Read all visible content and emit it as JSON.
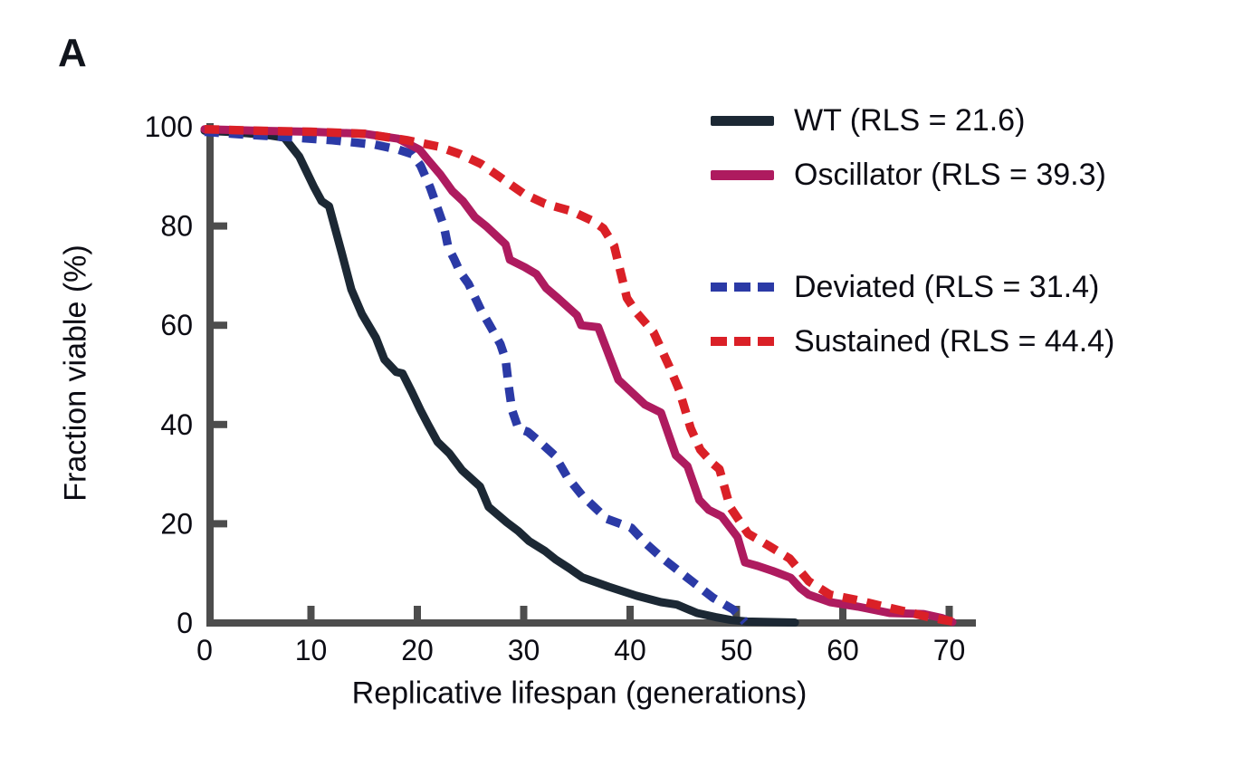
{
  "figure": {
    "panel_label": "A"
  },
  "chart_data": {
    "type": "line",
    "title": "",
    "xlabel": "Replicative lifespan (generations)",
    "ylabel": "Fraction viable (%)",
    "xlim": [
      0,
      70
    ],
    "ylim": [
      0,
      100
    ],
    "x_ticks": [
      0,
      10,
      20,
      30,
      40,
      50,
      60,
      70
    ],
    "y_ticks": [
      0,
      20,
      40,
      60,
      80,
      100
    ],
    "grid": false,
    "legend_position": "upper right",
    "axis_color": "#4d4d4d",
    "text_color": "#0c0c14",
    "series": [
      {
        "name": "WT",
        "label": "WT (RLS = 21.6)",
        "rls": 21.6,
        "color": "#1c2834",
        "style": "solid",
        "points": [
          [
            0,
            99.2
          ],
          [
            2,
            99
          ],
          [
            4,
            98.7
          ],
          [
            6,
            98.3
          ],
          [
            7.5,
            97.8
          ],
          [
            8.9,
            94
          ],
          [
            10.3,
            87.8
          ],
          [
            11,
            85
          ],
          [
            11.7,
            84
          ],
          [
            12.9,
            74.5
          ],
          [
            13.8,
            67.2
          ],
          [
            14.8,
            62.2
          ],
          [
            16.1,
            57.5
          ],
          [
            16.9,
            53.1
          ],
          [
            18,
            50.6
          ],
          [
            18.6,
            50.3
          ],
          [
            19.5,
            46.5
          ],
          [
            20.3,
            42.9
          ],
          [
            21,
            40
          ],
          [
            21.9,
            36.5
          ],
          [
            23,
            34.2
          ],
          [
            24.2,
            30.8
          ],
          [
            25.9,
            27.5
          ],
          [
            26.7,
            23.4
          ],
          [
            28.4,
            20.3
          ],
          [
            29.5,
            18.5
          ],
          [
            30.5,
            16.5
          ],
          [
            32,
            14.5
          ],
          [
            33,
            12.8
          ],
          [
            34.3,
            11
          ],
          [
            35.5,
            9.2
          ],
          [
            38,
            7.3
          ],
          [
            40.6,
            5.5
          ],
          [
            42.9,
            4.2
          ],
          [
            44.4,
            3.7
          ],
          [
            46.3,
            2
          ],
          [
            48,
            1.2
          ],
          [
            49.5,
            0.6
          ],
          [
            51,
            0.3
          ],
          [
            55.5,
            0.1
          ]
        ]
      },
      {
        "name": "Deviated",
        "label": "Deviated (RLS = 31.4)",
        "rls": 31.4,
        "color": "#2b3aa6",
        "style": "dashed",
        "points": [
          [
            0,
            99
          ],
          [
            4,
            98.4
          ],
          [
            8,
            97.9
          ],
          [
            12,
            97.3
          ],
          [
            16,
            96.4
          ],
          [
            18.2,
            95.4
          ],
          [
            19.5,
            94.5
          ],
          [
            20.3,
            92.2
          ],
          [
            21.2,
            87.8
          ],
          [
            21.9,
            83.6
          ],
          [
            22.5,
            79.9
          ],
          [
            22.9,
            75.7
          ],
          [
            23.5,
            73.2
          ],
          [
            24,
            70.8
          ],
          [
            24.8,
            68.4
          ],
          [
            26,
            63
          ],
          [
            26.7,
            60.4
          ],
          [
            27.8,
            56.2
          ],
          [
            28.3,
            53.1
          ],
          [
            28.6,
            47.6
          ],
          [
            28.9,
            42.9
          ],
          [
            29.5,
            39.2
          ],
          [
            30.4,
            38.5
          ],
          [
            31.4,
            36.7
          ],
          [
            32.9,
            33.8
          ],
          [
            34.1,
            29.4
          ],
          [
            35.5,
            25.7
          ],
          [
            37.8,
            21
          ],
          [
            40.1,
            19.2
          ],
          [
            41.5,
            16
          ],
          [
            42.9,
            13.3
          ],
          [
            45.4,
            9.1
          ],
          [
            47.8,
            5.1
          ],
          [
            49.7,
            2.7
          ],
          [
            50.8,
            0.2
          ]
        ]
      },
      {
        "name": "Oscillator",
        "label": "Oscillator (RLS = 39.3)",
        "rls": 39.3,
        "color": "#ae1b5f",
        "style": "solid",
        "points": [
          [
            0,
            99.5
          ],
          [
            5,
            99.2
          ],
          [
            10,
            99
          ],
          [
            15,
            98.6
          ],
          [
            18.2,
            97.6
          ],
          [
            20.2,
            95.4
          ],
          [
            21,
            93.3
          ],
          [
            22.2,
            90.3
          ],
          [
            23.3,
            87
          ],
          [
            24.3,
            85
          ],
          [
            25.4,
            81.8
          ],
          [
            26.5,
            79.9
          ],
          [
            27.6,
            77.7
          ],
          [
            28.3,
            76.3
          ],
          [
            28.7,
            73.2
          ],
          [
            30.1,
            71.7
          ],
          [
            31.2,
            70.3
          ],
          [
            32.1,
            67.5
          ],
          [
            33.3,
            65.3
          ],
          [
            35,
            62
          ],
          [
            35.4,
            60
          ],
          [
            37,
            59.6
          ],
          [
            38.9,
            49
          ],
          [
            41.4,
            44
          ],
          [
            42.9,
            42.4
          ],
          [
            44.3,
            33.8
          ],
          [
            45.4,
            31.6
          ],
          [
            46.5,
            24.8
          ],
          [
            47.4,
            22.8
          ],
          [
            48.6,
            21.5
          ],
          [
            50.1,
            17.3
          ],
          [
            50.8,
            12.2
          ],
          [
            52,
            11.5
          ],
          [
            53.4,
            10.5
          ],
          [
            55.1,
            9.1
          ],
          [
            56,
            7
          ],
          [
            56.8,
            5.7
          ],
          [
            58.8,
            4.2
          ],
          [
            61.4,
            3.3
          ],
          [
            64.4,
            2
          ],
          [
            67.6,
            1.8
          ],
          [
            69.3,
            1
          ],
          [
            70.3,
            0.2
          ]
        ]
      },
      {
        "name": "Sustained",
        "label": "Sustained (RLS = 44.4)",
        "rls": 44.4,
        "color": "#da2027",
        "style": "dashed",
        "points": [
          [
            0,
            99.5
          ],
          [
            5,
            99.2
          ],
          [
            10,
            99
          ],
          [
            15,
            98.6
          ],
          [
            19,
            97.3
          ],
          [
            22,
            96
          ],
          [
            24,
            94.5
          ],
          [
            26,
            92.5
          ],
          [
            28,
            89.5
          ],
          [
            30,
            86.5
          ],
          [
            32,
            84.5
          ],
          [
            34.5,
            83
          ],
          [
            36.5,
            81
          ],
          [
            37.5,
            79.5
          ],
          [
            38.5,
            76
          ],
          [
            39.7,
            65.5
          ],
          [
            40.6,
            62.6
          ],
          [
            42.2,
            58.6
          ],
          [
            43.7,
            51.6
          ],
          [
            44.6,
            47
          ],
          [
            45.7,
            39.2
          ],
          [
            46.6,
            34.9
          ],
          [
            47.8,
            32.1
          ],
          [
            48.4,
            31
          ],
          [
            49.4,
            23.4
          ],
          [
            51.1,
            18
          ],
          [
            53.1,
            15.5
          ],
          [
            55,
            13
          ],
          [
            56.8,
            8.4
          ],
          [
            58.8,
            5.7
          ],
          [
            61.4,
            4.6
          ],
          [
            63.9,
            3.3
          ],
          [
            66.5,
            2
          ],
          [
            68,
            1.2
          ],
          [
            69.5,
            0.6
          ],
          [
            71,
            0.1
          ]
        ]
      }
    ]
  }
}
